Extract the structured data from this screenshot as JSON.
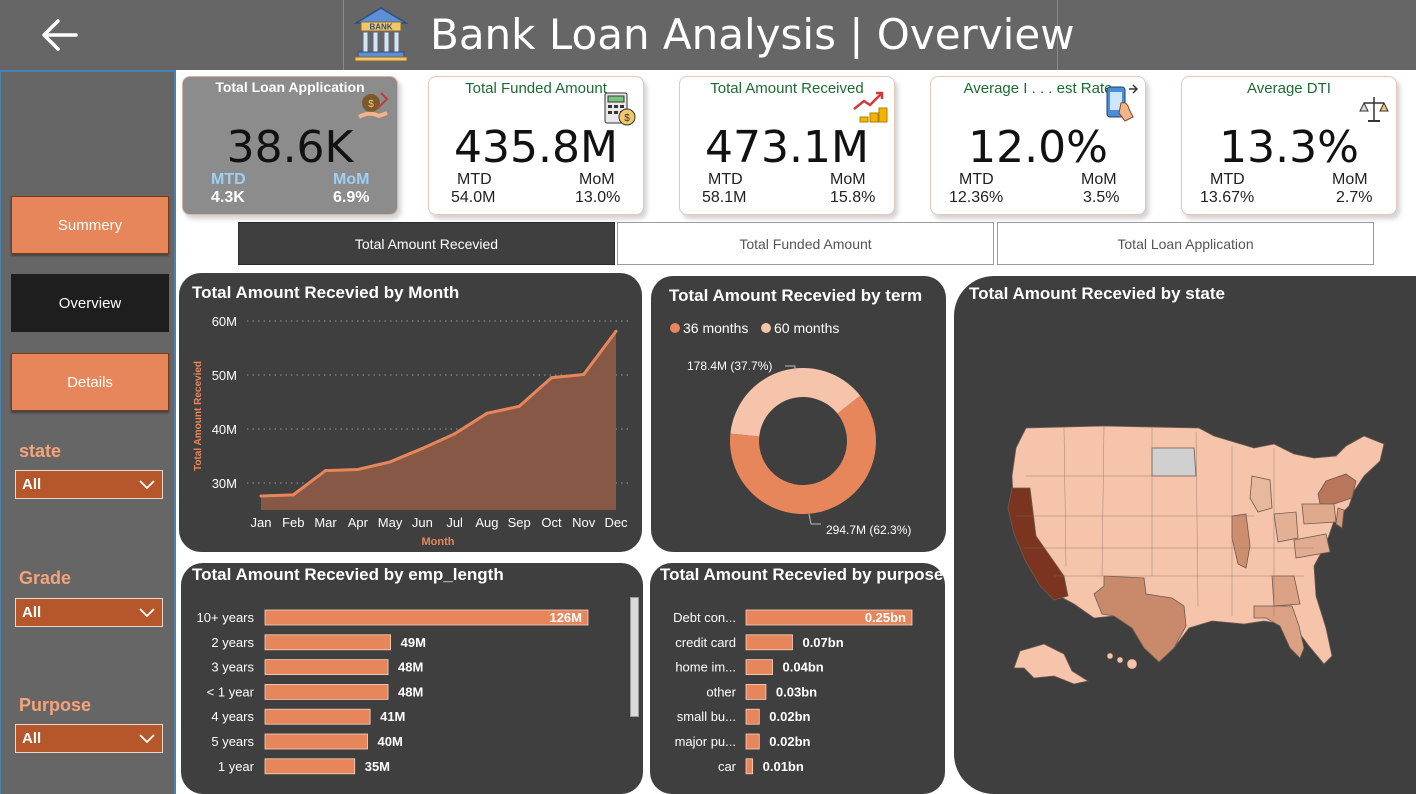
{
  "header": {
    "title": "Bank Loan Analysis | Overview",
    "bank_icon_text": "BANK"
  },
  "nav": {
    "summary": "Summery",
    "overview": "Overview",
    "details": "Details"
  },
  "filters": [
    {
      "label": "state",
      "value": "All"
    },
    {
      "label": "Grade",
      "value": "All"
    },
    {
      "label": "Purpose",
      "value": "All"
    }
  ],
  "kpis": [
    {
      "title": "Total Loan Application",
      "value": "38.6K",
      "mtd_label": "MTD",
      "mtd": "4.3K",
      "mom_label": "MoM",
      "mom": "6.9%"
    },
    {
      "title": "Total Funded Amount",
      "value": "435.8M",
      "mtd_label": "MTD",
      "mtd": "54.0M",
      "mom_label": "MoM",
      "mom": "13.0%"
    },
    {
      "title": "Total Amount Received",
      "value": "473.1M",
      "mtd_label": "MTD",
      "mtd": "58.1M",
      "mom_label": "MoM",
      "mom": "15.8%"
    },
    {
      "title": "Average I . . . est Rate",
      "value": "12.0%",
      "mtd_label": "MTD",
      "mtd": "12.36%",
      "mom_label": "MoM",
      "mom": "3.5%"
    },
    {
      "title": "Average DTI",
      "value": "13.3%",
      "mtd_label": "MTD",
      "mtd": "13.67%",
      "mom_label": "MoM",
      "mom": "2.7%"
    }
  ],
  "tabs": [
    "Total Amount Recevied",
    "Total Funded Amount",
    "Total Loan Application"
  ],
  "colors": {
    "accent": "#e8865b",
    "panel": "#3f3f3f",
    "light": "#f5c4ab",
    "dark_state": "#7a3420"
  },
  "chart_data": [
    {
      "type": "area",
      "title": "Total Amount Recevied by Month",
      "xlabel": "Month",
      "ylabel": "Total Amount Recevied",
      "categories": [
        "Jan",
        "Feb",
        "Mar",
        "Apr",
        "May",
        "Jun",
        "Jul",
        "Aug",
        "Sep",
        "Oct",
        "Nov",
        "Dec"
      ],
      "values": [
        27.6,
        27.8,
        32.3,
        32.5,
        33.9,
        36.4,
        39.1,
        42.9,
        44.2,
        49.5,
        50.1,
        58.1
      ],
      "yticks": [
        "30M",
        "40M",
        "50M",
        "60M"
      ],
      "ylim": [
        25,
        60
      ],
      "grid": true
    },
    {
      "type": "pie",
      "title": "Total Amount Recevied by term",
      "legend": [
        "36 months",
        "60 months"
      ],
      "legend_position": "top",
      "values": [
        294.7,
        178.4
      ],
      "labels": [
        "294.7M (62.3%)",
        "178.4M (37.7%)"
      ],
      "donut": true
    },
    {
      "type": "bar",
      "title": "Total Amount Recevied by emp_length",
      "categories": [
        "10+ years",
        "2 years",
        "3 years",
        "< 1 year",
        "4 years",
        "5 years",
        "1 year"
      ],
      "values": [
        126,
        49,
        48,
        48,
        41,
        40,
        35
      ],
      "labels": [
        "126M",
        "49M",
        "48M",
        "48M",
        "41M",
        "40M",
        "35M"
      ],
      "orientation": "horizontal"
    },
    {
      "type": "bar",
      "title": "Total Amount Recevied by purpose",
      "categories": [
        "Debt con...",
        "credit card",
        "home im...",
        "other",
        "small bu...",
        "major pu...",
        "car"
      ],
      "values": [
        0.25,
        0.07,
        0.04,
        0.03,
        0.02,
        0.02,
        0.01
      ],
      "labels": [
        "0.25bn",
        "0.07bn",
        "0.04bn",
        "0.03bn",
        "0.02bn",
        "0.02bn",
        "0.01bn"
      ],
      "orientation": "horizontal"
    },
    {
      "type": "map",
      "title": "Total Amount Recevied by state"
    }
  ]
}
